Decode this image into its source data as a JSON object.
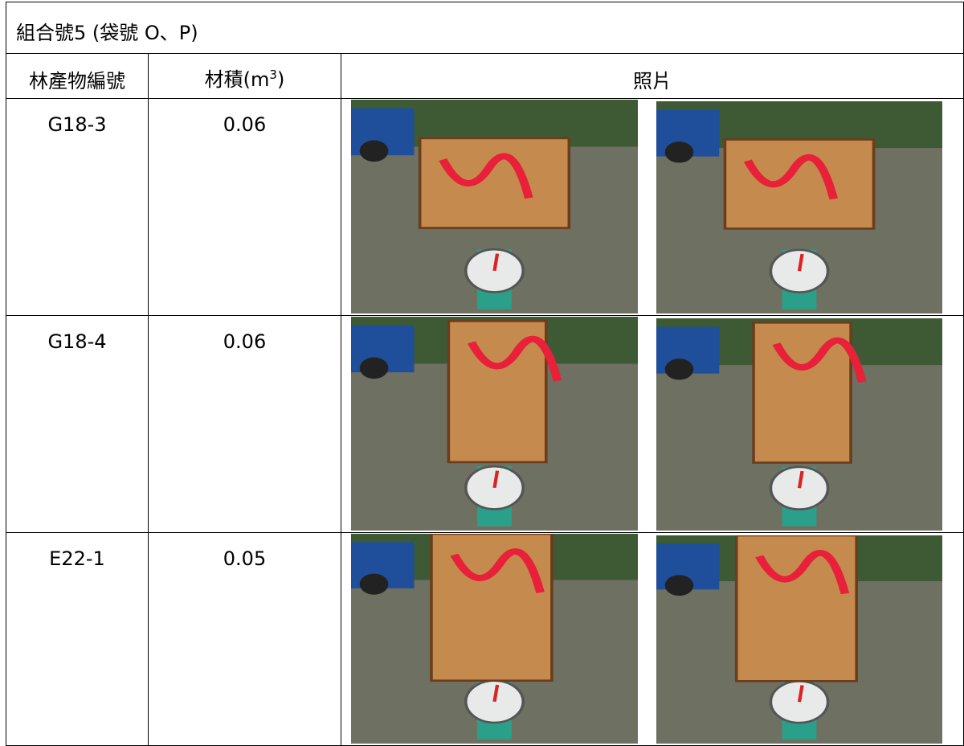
{
  "table": {
    "title": "組合號5 (袋號 O、P)",
    "headers": {
      "id": "林產物編號",
      "volume": {
        "prefix": "材積(m",
        "sup": "3",
        "suffix": ")"
      },
      "photo": "照片"
    },
    "rows": [
      [
        "G18-3",
        "0.06"
      ],
      [
        "G18-4",
        "0.06"
      ],
      [
        "E22-1",
        "0.05"
      ]
    ]
  }
}
